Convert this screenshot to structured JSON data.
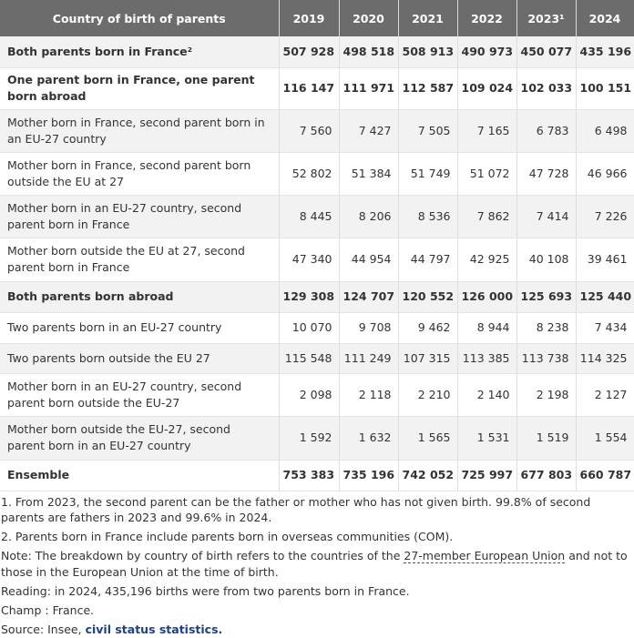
{
  "table": {
    "columns": [
      "Country of birth of parents",
      "2019",
      "2020",
      "2021",
      "2022",
      "2023¹",
      "2024"
    ],
    "rows": [
      {
        "label": "Both parents born in France²",
        "bold": true,
        "values": [
          "507 928",
          "498 518",
          "508 913",
          "490 973",
          "450 077",
          "435 196"
        ]
      },
      {
        "label": "One parent born in France, one parent born abroad",
        "bold": true,
        "values": [
          "116 147",
          "111 971",
          "112 587",
          "109 024",
          "102 033",
          "100 151"
        ]
      },
      {
        "label": "Mother born in France, second parent born in an EU-27 country",
        "bold": false,
        "values": [
          "7 560",
          "7 427",
          "7 505",
          "7 165",
          "6 783",
          "6 498"
        ]
      },
      {
        "label": "Mother born in France, second parent born outside the EU at 27",
        "bold": false,
        "values": [
          "52 802",
          "51 384",
          "51 749",
          "51 072",
          "47 728",
          "46 966"
        ]
      },
      {
        "label": "Mother born in an EU-27 country, second parent born in France",
        "bold": false,
        "values": [
          "8 445",
          "8 206",
          "8 536",
          "7 862",
          "7 414",
          "7 226"
        ]
      },
      {
        "label": "Mother born outside the EU at 27, second parent born in France",
        "bold": false,
        "values": [
          "47 340",
          "44 954",
          "44 797",
          "42 925",
          "40 108",
          "39 461"
        ]
      },
      {
        "label": "Both parents born abroad",
        "bold": true,
        "values": [
          "129 308",
          "124 707",
          "120 552",
          "126 000",
          "125 693",
          "125 440"
        ]
      },
      {
        "label": "Two parents born in an EU-27 country",
        "bold": false,
        "values": [
          "10 070",
          "9 708",
          "9 462",
          "8 944",
          "8 238",
          "7 434"
        ]
      },
      {
        "label": "Two parents born outside the EU 27",
        "bold": false,
        "values": [
          "115 548",
          "111 249",
          "107 315",
          "113 385",
          "113 738",
          "114 325"
        ]
      },
      {
        "label": "Mother born in an EU-27 country, second parent born outside the EU-27",
        "bold": false,
        "values": [
          "2 098",
          "2 118",
          "2 210",
          "2 140",
          "2 198",
          "2 127"
        ]
      },
      {
        "label": "Mother born outside the EU-27, second parent born in an EU-27 country",
        "bold": false,
        "values": [
          "1 592",
          "1 632",
          "1 565",
          "1 531",
          "1 519",
          "1 554"
        ]
      },
      {
        "label": "Ensemble",
        "bold": true,
        "values": [
          "753 383",
          "735 196",
          "742 052",
          "725 997",
          "677 803",
          "660 787"
        ]
      }
    ]
  },
  "notes": [
    {
      "text": "1. From 2023, the second parent can be the father or mother who has not given birth. 99.8% of second parents are fathers in 2023 and 99.6% in 2024."
    },
    {
      "text": "2. Parents born in France include parents born in overseas communities (COM)."
    },
    {
      "text": "Note: The breakdown by country of birth refers to the countries of the ",
      "link": "27-member European Union",
      "after": " and not to those in the European Union at the time of birth."
    },
    {
      "text": "Reading: in 2024, 435,196 births were from two parents born in France."
    },
    {
      "text": "Champ : France."
    },
    {
      "text": "Source: Insee, ",
      "link": "civil status statistics."
    }
  ]
}
